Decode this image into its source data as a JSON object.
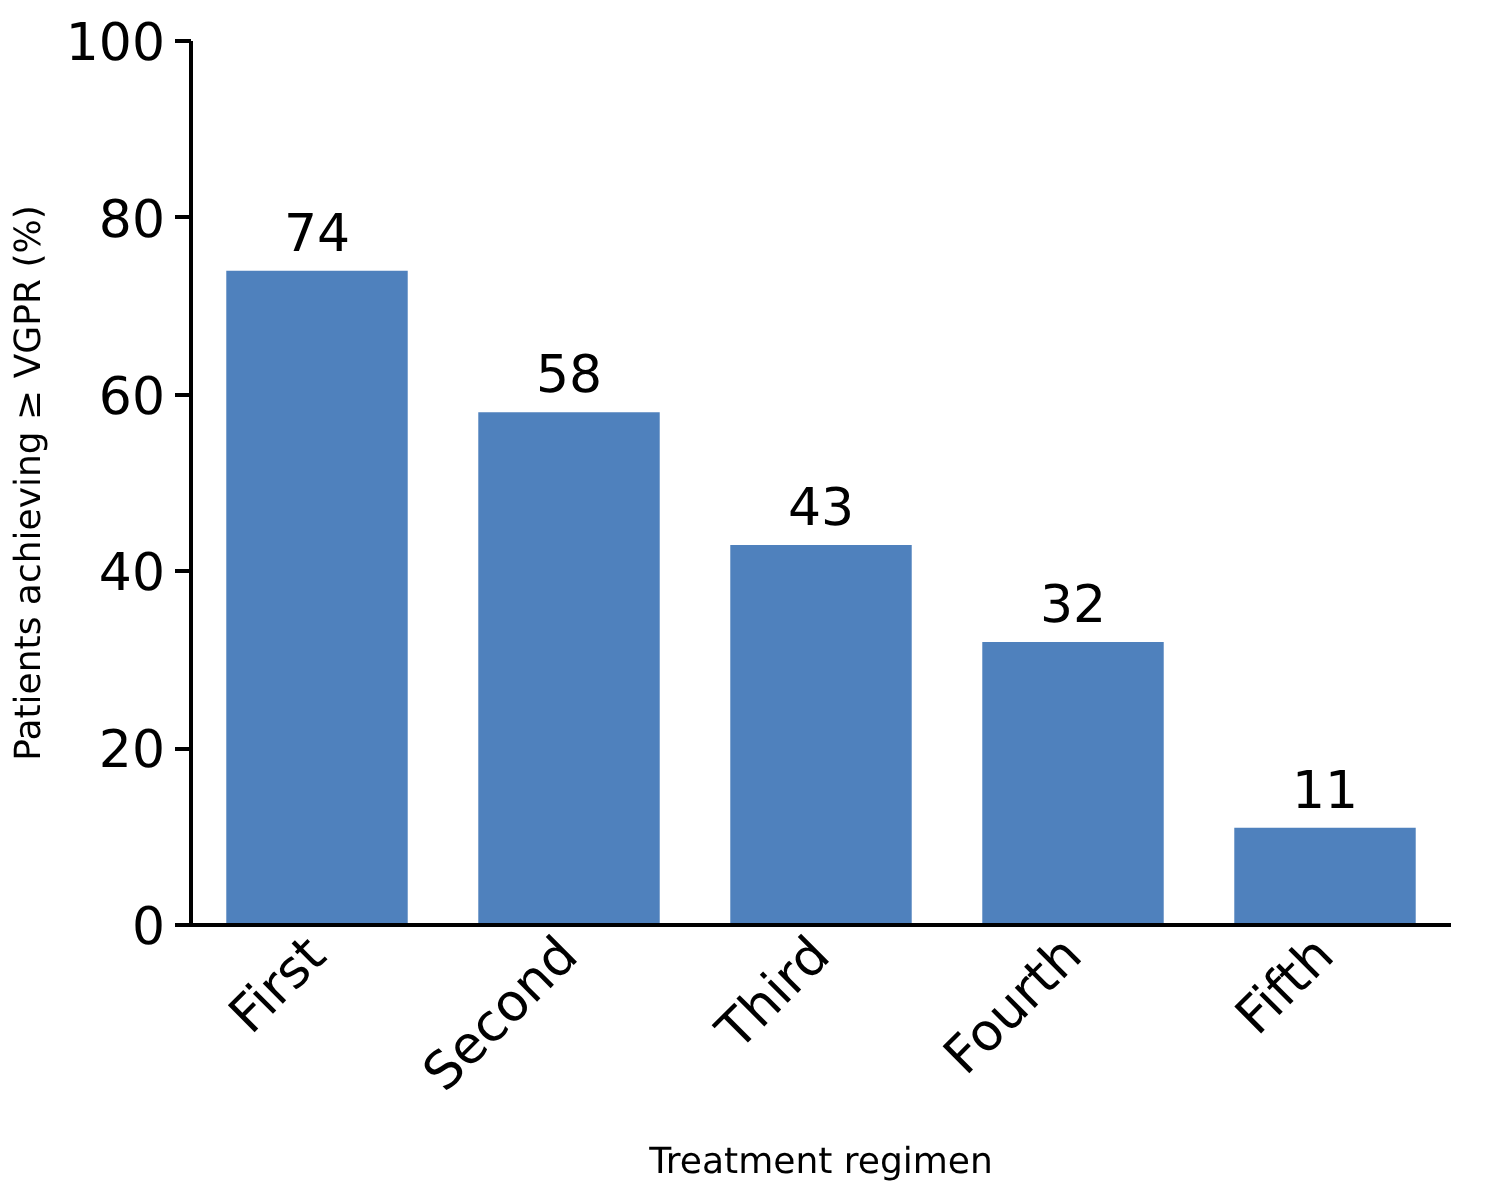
{
  "chart_data": {
    "type": "bar",
    "categories": [
      "First",
      "Second",
      "Third",
      "Fourth",
      "Fifth"
    ],
    "values": [
      74,
      58,
      43,
      32,
      11
    ],
    "color": "#4f81bd",
    "xlabel": "Treatment regimen",
    "ylabel": "Patients achieving ≥ VGPR (%)",
    "ylim": [
      0,
      100
    ],
    "yticks": [
      0,
      20,
      40,
      60,
      80,
      100
    ],
    "grid": false,
    "data_labels": true
  }
}
